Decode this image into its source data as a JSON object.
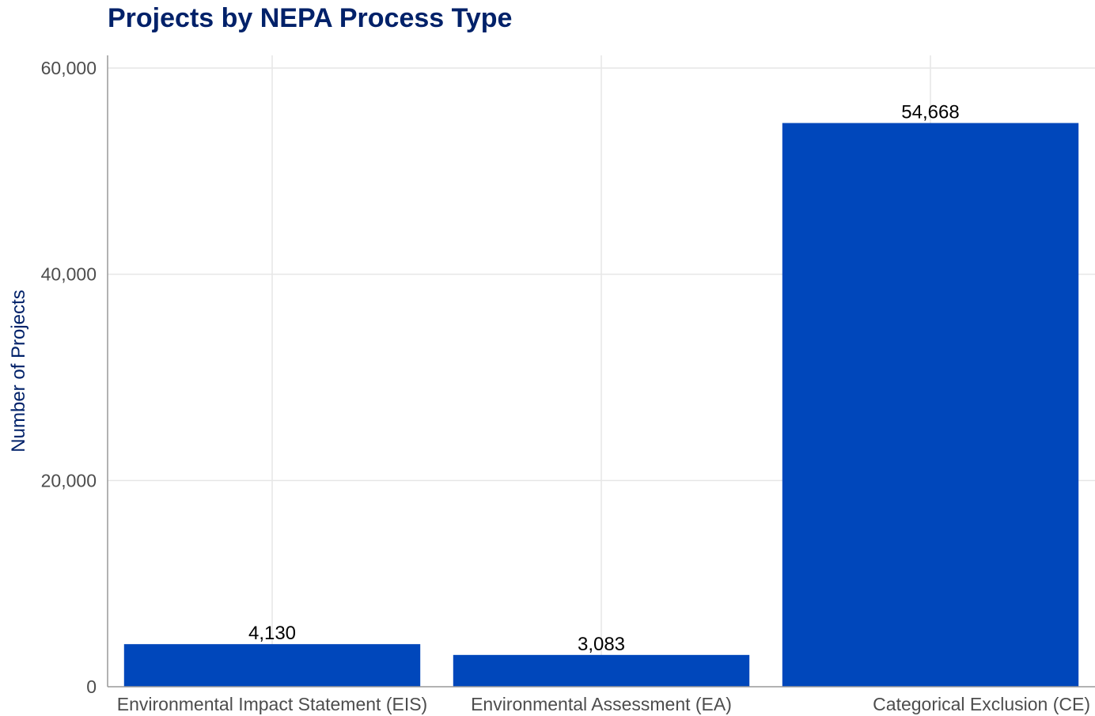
{
  "chart_data": {
    "type": "bar",
    "title": "Projects by NEPA Process Type",
    "xlabel": "",
    "ylabel": "Number of Projects",
    "categories": [
      "Environmental Impact Statement (EIS)",
      "Environmental Assessment (EA)",
      "Categorical Exclusion (CE)"
    ],
    "values": [
      4130,
      3083,
      54668
    ],
    "data_labels": [
      "4,130",
      "3,083",
      "54,668"
    ],
    "ylim": [
      0,
      60000
    ],
    "yticks": [
      0,
      20000,
      40000,
      60000
    ],
    "ytick_labels": [
      "0",
      "20,000",
      "40,000",
      "60,000"
    ],
    "grid": true,
    "legend": "none"
  },
  "colors": {
    "bar": "#0047BB",
    "title": "#002169",
    "ylabel": "#002169",
    "grid": "#e6e6e6",
    "axis": "#999999"
  }
}
